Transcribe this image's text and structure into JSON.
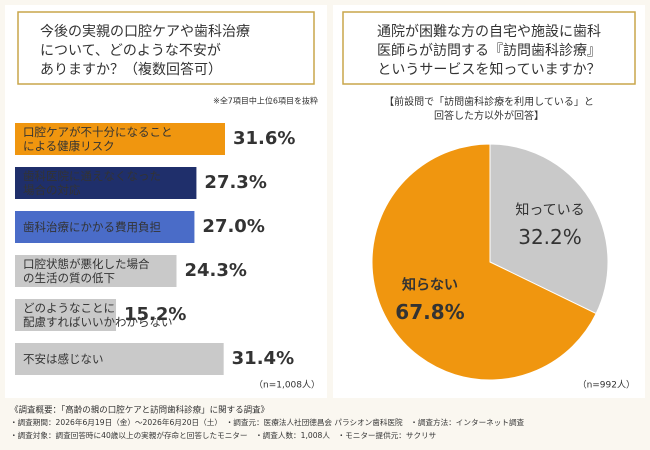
{
  "chart_data": [
    {
      "type": "bar",
      "orientation": "horizontal",
      "title": [
        "今後の実親の口腔ケアや歯科治療",
        "について、どのような不安が",
        "ありますか？（複数回答可）"
      ],
      "note": "※全7項目中上位6項目を抜粋",
      "categories": [
        "口腔ケアが不十分になること\nによる健康リスク",
        "歯科医院に通えなくなった\n場合の対応",
        "歯科治療にかかる費用負担",
        "口腔状態が悪化した場合\nの生活の質の低下",
        "どのようなことに\n配慮すればいいかわからない",
        "不安は感じない"
      ],
      "values": [
        31.6,
        27.3,
        27.0,
        24.3,
        15.2,
        31.4
      ],
      "value_labels": [
        "31.6%",
        "27.3%",
        "27.0%",
        "24.3%",
        "15.2%",
        "31.4%"
      ],
      "colors": [
        "#f0960f",
        "#1f2f6b",
        "#4a6cc8",
        "#c9c9c9",
        "#c9c9c9",
        "#c9c9c9"
      ],
      "n_label": "（n=1,008人）"
    },
    {
      "type": "pie",
      "title": [
        "通院が困難な方の自宅や施設に歯科",
        "医師らが訪問する『訪問歯科診療』",
        "というサービスを知っていますか？"
      ],
      "subtitle": [
        "【前設問で「訪問歯科診療を利用している」と",
        "回答した方以外が回答】"
      ],
      "categories": [
        "知っている",
        "知らない"
      ],
      "values": [
        32.2,
        67.8
      ],
      "value_labels": [
        "32.2%",
        "67.8%"
      ],
      "colors": [
        "#c9c9c9",
        "#f0960f"
      ],
      "n_label": "（n=992人）"
    }
  ],
  "footer": [
    "《調査概要：「高齢の親の口腔ケアと訪問歯科診療」に関する調査》",
    "・調査期間：2026年6月19日（金）～2026年6月20日（土）　・調査元：医療法人社団徳昌会 パラシオン歯科医院　・調査方法：インターネット調査",
    "・調査対象：調査回答時に40歳以上の実親が存命と回答したモニター　・調査人数：1,008人　・モニター提供元：サクリサ"
  ]
}
